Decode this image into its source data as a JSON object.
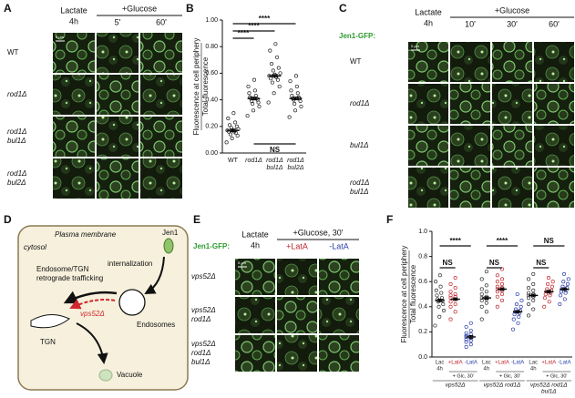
{
  "panels": {
    "a": "A",
    "b": "B",
    "c": "C",
    "d": "D",
    "e": "E",
    "f": "F"
  },
  "panel_a": {
    "col_header_1": [
      "Lactate",
      "4h"
    ],
    "group_header": "+Glucose",
    "cols": [
      "5'",
      "60'"
    ],
    "rows": [
      [
        "WT"
      ],
      [
        "rod1Δ"
      ],
      [
        "rod1Δ",
        "bul1Δ"
      ],
      [
        "rod1Δ",
        "bul2Δ"
      ]
    ],
    "scale_bar": "5 µm"
  },
  "panel_c": {
    "reporter": "Jen1-GFP:",
    "col_header_1": [
      "Lactate",
      "4h"
    ],
    "group_header": "+Glucose",
    "cols": [
      "10'",
      "30'",
      "60'"
    ],
    "rows": [
      [
        "WT"
      ],
      [
        "rod1Δ"
      ],
      [
        "bul1Δ"
      ],
      [
        "rod1Δ",
        "bul1Δ"
      ]
    ],
    "scale_bar": "5 µm"
  },
  "panel_d": {
    "plasma_membrane": "Plasma membrane",
    "cytosol": "cytosol",
    "jen1": "Jen1",
    "internalization": "internalization",
    "endosome_tgn": [
      "Endosome/TGN",
      "retrograde trafficking"
    ],
    "vps52": "vps52Δ",
    "endosomes": "Endosomes",
    "tgn": "TGN",
    "vacuole": "Vacuole"
  },
  "panel_e": {
    "reporter": "Jen1-GFP:",
    "col_header_1": [
      "Lactate",
      "4h"
    ],
    "group_header": "+Glucose, 30'",
    "cols": [
      {
        "label": "+LatA",
        "color": "#c0282d"
      },
      {
        "label": "-LatA",
        "color": "#2b3fa8"
      }
    ],
    "rows": [
      [
        "vps52Δ"
      ],
      [
        "vps52Δ",
        "rod1Δ"
      ],
      [
        "vps52Δ",
        "rod1Δ",
        "bul1Δ"
      ]
    ],
    "scale_bar": "5 µm"
  },
  "chart_data": [
    {
      "type": "dotplot",
      "ylabel": [
        "Fluorescence at cell periphery",
        "Total fluorescence"
      ],
      "ylim": [
        0,
        1
      ],
      "yticks": [
        {
          "value": 0,
          "label": "0.00"
        },
        {
          "value": 0.2,
          "label": "0.20"
        },
        {
          "value": 0.4,
          "label": "0.40"
        },
        {
          "value": 0.6,
          "label": "0.60"
        },
        {
          "value": 0.8,
          "label": "0.80"
        },
        {
          "value": 1,
          "label": "1.00"
        }
      ],
      "categories": [
        [
          "WT"
        ],
        [
          "rod1Δ"
        ],
        [
          "rod1Δ",
          "bul1Δ"
        ],
        [
          "rod1Δ",
          "bul2Δ"
        ]
      ],
      "color": "#222222",
      "groups": [
        {
          "values": [
            0.08,
            0.11,
            0.13,
            0.14,
            0.15,
            0.16,
            0.16,
            0.17,
            0.17,
            0.18,
            0.19,
            0.2,
            0.21,
            0.23,
            0.26,
            0.3
          ],
          "mean": 0.17,
          "sem": 0.01
        },
        {
          "values": [
            0.28,
            0.32,
            0.35,
            0.37,
            0.38,
            0.39,
            0.4,
            0.41,
            0.41,
            0.42,
            0.43,
            0.45,
            0.47,
            0.5,
            0.55
          ],
          "mean": 0.41,
          "sem": 0.01
        },
        {
          "values": [
            0.38,
            0.45,
            0.5,
            0.53,
            0.55,
            0.56,
            0.57,
            0.58,
            0.59,
            0.6,
            0.62,
            0.64,
            0.67,
            0.72,
            0.77,
            0.82
          ],
          "mean": 0.58,
          "sem": 0.01
        },
        {
          "values": [
            0.27,
            0.32,
            0.35,
            0.37,
            0.39,
            0.4,
            0.41,
            0.41,
            0.42,
            0.43,
            0.45,
            0.47,
            0.5,
            0.54,
            0.58
          ],
          "mean": 0.41,
          "sem": 0.01
        }
      ],
      "significance_above": [
        {
          "label": "****",
          "from": 0,
          "to": 1
        },
        {
          "label": "****",
          "from": 0,
          "to": 2
        },
        {
          "label": "****",
          "from": 0,
          "to": 3
        }
      ],
      "significance_below": [
        {
          "label": "NS",
          "from": 1,
          "to": 3
        }
      ]
    },
    {
      "type": "dotplot-grouped",
      "ylabel": [
        "Fluorescence at cell periphery",
        "Total fluorescence"
      ],
      "ylim": [
        0,
        1
      ],
      "yticks": [
        {
          "value": 0,
          "label": "0.0"
        },
        {
          "value": 0.2,
          "label": "0.2"
        },
        {
          "value": 0.4,
          "label": "0.4"
        },
        {
          "value": 0.6,
          "label": "0.6"
        },
        {
          "value": 0.8,
          "label": "0.8"
        },
        {
          "value": 1,
          "label": "1.0"
        }
      ],
      "groups": [
        {
          "name": [
            "vps52Δ"
          ],
          "subheader": "+ Glc, 30'",
          "conditions": [
            {
              "label": [
                "Lac",
                "4h"
              ],
              "color": "#333333",
              "values": [
                0.25,
                0.32,
                0.37,
                0.4,
                0.42,
                0.44,
                0.45,
                0.46,
                0.47,
                0.49,
                0.51,
                0.53,
                0.56,
                0.6,
                0.65
              ],
              "mean": 0.45,
              "sem": 0.01
            },
            {
              "label": [
                "+LatA"
              ],
              "color": "#c0282d",
              "values": [
                0.3,
                0.36,
                0.4,
                0.42,
                0.44,
                0.46,
                0.47,
                0.48,
                0.49,
                0.5,
                0.52,
                0.55,
                0.58,
                0.63
              ],
              "mean": 0.46,
              "sem": 0.01
            },
            {
              "label": [
                "-LatA"
              ],
              "color": "#2b3fa8",
              "values": [
                0.08,
                0.1,
                0.12,
                0.13,
                0.14,
                0.15,
                0.16,
                0.16,
                0.17,
                0.18,
                0.19,
                0.21,
                0.24,
                0.27
              ],
              "mean": 0.16,
              "sem": 0.01
            }
          ],
          "significance": [
            {
              "label": "NS",
              "from": 0,
              "to": 1
            },
            {
              "label": "****",
              "from": 0,
              "to": 2
            }
          ]
        },
        {
          "name": [
            "vps52Δ rod1Δ"
          ],
          "subheader": "+ Glc, 30'",
          "conditions": [
            {
              "label": [
                "Lac",
                "4h"
              ],
              "color": "#333333",
              "values": [
                0.3,
                0.36,
                0.4,
                0.43,
                0.45,
                0.46,
                0.47,
                0.48,
                0.5,
                0.52,
                0.54,
                0.57,
                0.62,
                0.68
              ],
              "mean": 0.47,
              "sem": 0.01
            },
            {
              "label": [
                "+LatA"
              ],
              "color": "#c0282d",
              "values": [
                0.4,
                0.45,
                0.48,
                0.5,
                0.52,
                0.53,
                0.54,
                0.55,
                0.56,
                0.58,
                0.6,
                0.62,
                0.65,
                0.7
              ],
              "mean": 0.54,
              "sem": 0.01
            },
            {
              "label": [
                "-LatA"
              ],
              "color": "#2b3fa8",
              "values": [
                0.22,
                0.27,
                0.3,
                0.32,
                0.34,
                0.35,
                0.36,
                0.37,
                0.38,
                0.4,
                0.42,
                0.45,
                0.5
              ],
              "mean": 0.36,
              "sem": 0.01
            }
          ],
          "significance": [
            {
              "label": "NS",
              "from": 0,
              "to": 1
            },
            {
              "label": "****",
              "from": 0,
              "to": 2
            }
          ]
        },
        {
          "name": [
            "vps52Δ rod1Δ",
            "bul1Δ"
          ],
          "subheader": "+ Glc, 30'",
          "conditions": [
            {
              "label": [
                "Lac",
                "4h"
              ],
              "color": "#333333",
              "values": [
                0.33,
                0.38,
                0.42,
                0.45,
                0.47,
                0.48,
                0.49,
                0.5,
                0.51,
                0.53,
                0.55,
                0.58,
                0.62,
                0.66
              ],
              "mean": 0.49,
              "sem": 0.01
            },
            {
              "label": [
                "+LatA"
              ],
              "color": "#c0282d",
              "values": [
                0.4,
                0.44,
                0.47,
                0.49,
                0.5,
                0.51,
                0.52,
                0.53,
                0.54,
                0.56,
                0.58,
                0.6,
                0.63
              ],
              "mean": 0.52,
              "sem": 0.01
            },
            {
              "label": [
                "-LatA"
              ],
              "color": "#2b3fa8",
              "values": [
                0.42,
                0.46,
                0.49,
                0.51,
                0.52,
                0.53,
                0.54,
                0.55,
                0.56,
                0.58,
                0.6,
                0.62,
                0.66
              ],
              "mean": 0.54,
              "sem": 0.01
            }
          ],
          "significance": [
            {
              "label": "NS",
              "from": 0,
              "to": 1
            },
            {
              "label": "NS",
              "from": 0,
              "to": 2
            }
          ]
        }
      ]
    }
  ]
}
